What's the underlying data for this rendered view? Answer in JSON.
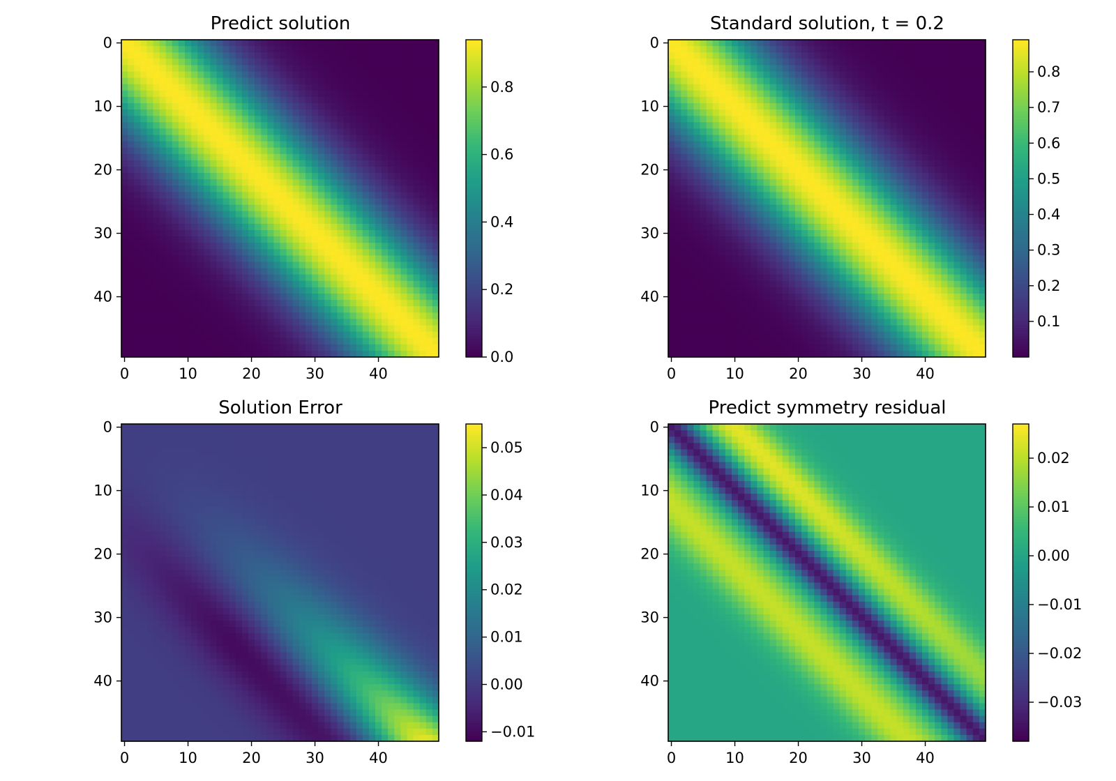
{
  "figure": {
    "panels": [
      {
        "title": "Predict solution"
      },
      {
        "title": "Standard solution, t = 0.2"
      },
      {
        "title": "Solution Error"
      },
      {
        "title": "Predict symmetry residual"
      }
    ]
  },
  "chart_data": [
    {
      "type": "heatmap",
      "title": "Predict solution",
      "xlabel": "",
      "ylabel": "",
      "grid_size": [
        50,
        50
      ],
      "x_ticks": [
        "0",
        "10",
        "20",
        "30",
        "40"
      ],
      "y_ticks": [
        "0",
        "10",
        "20",
        "30",
        "40"
      ],
      "colormap": "viridis",
      "vmin": 0.0,
      "vmax": 0.94,
      "colorbar_ticks": [
        0.0,
        0.2,
        0.4,
        0.6,
        0.8
      ],
      "colorbar_tick_labels": [
        "0.0",
        "0.2",
        "0.4",
        "0.6",
        "0.8"
      ],
      "pattern": "diagonal band; value = 0.94*exp(-((col-row)/13)^2), peak along main diagonal"
    },
    {
      "type": "heatmap",
      "title": "Standard solution, t = 0.2",
      "xlabel": "",
      "ylabel": "",
      "grid_size": [
        50,
        50
      ],
      "x_ticks": [
        "0",
        "10",
        "20",
        "30",
        "40"
      ],
      "y_ticks": [
        "0",
        "10",
        "20",
        "30",
        "40"
      ],
      "colormap": "viridis",
      "vmin": 0.0,
      "vmax": 0.89,
      "colorbar_ticks": [
        0.1,
        0.2,
        0.3,
        0.4,
        0.5,
        0.6,
        0.7,
        0.8
      ],
      "colorbar_tick_labels": [
        "0.1",
        "0.2",
        "0.3",
        "0.4",
        "0.5",
        "0.6",
        "0.7",
        "0.8"
      ],
      "pattern": "diagonal band; value = 0.89*exp(-((col-row)/13)^2), peak along main diagonal"
    },
    {
      "type": "heatmap",
      "title": "Solution Error",
      "xlabel": "",
      "ylabel": "",
      "grid_size": [
        50,
        50
      ],
      "x_ticks": [
        "0",
        "10",
        "20",
        "30",
        "40"
      ],
      "y_ticks": [
        "0",
        "10",
        "20",
        "30",
        "40"
      ],
      "colormap": "viridis",
      "vmin": -0.012,
      "vmax": 0.055,
      "colorbar_ticks": [
        -0.01,
        0.0,
        0.01,
        0.02,
        0.03,
        0.04,
        0.05
      ],
      "colorbar_tick_labels": [
        "−0.01",
        "0.00",
        "0.01",
        "0.02",
        "0.03",
        "0.04",
        "0.05"
      ],
      "pattern": "positive band along diagonal growing toward bottom-right (max ~0.055 at (49,49)); negative trough below diagonal (min ~-0.012); ~0.0 elsewhere"
    },
    {
      "type": "heatmap",
      "title": "Predict symmetry residual",
      "xlabel": "",
      "ylabel": "",
      "grid_size": [
        50,
        50
      ],
      "x_ticks": [
        "0",
        "10",
        "20",
        "30",
        "40"
      ],
      "y_ticks": [
        "0",
        "10",
        "20",
        "30",
        "40"
      ],
      "colormap": "viridis",
      "vmin": -0.038,
      "vmax": 0.027,
      "colorbar_ticks": [
        -0.03,
        -0.02,
        -0.01,
        0.0,
        0.01,
        0.02
      ],
      "colorbar_tick_labels": [
        "−0.03",
        "−0.02",
        "−0.01",
        "0.00",
        "0.01",
        "0.02"
      ],
      "pattern": "negative stripe on the main diagonal (~-0.035); positive stripes either side (~0.02); background ~0.0"
    }
  ]
}
